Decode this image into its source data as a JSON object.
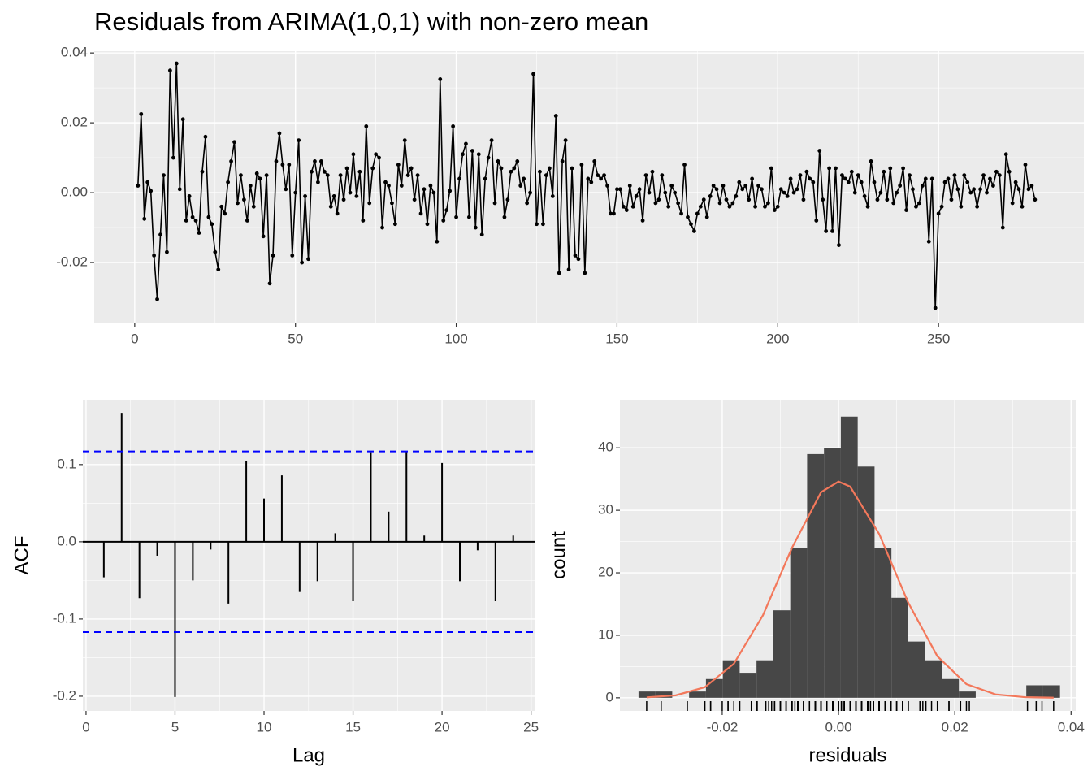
{
  "chart_data": [
    {
      "type": "line",
      "title": "Residuals from ARIMA(1,0,1) with non-zero mean",
      "color": "#000000",
      "grid": true,
      "x": [
        1,
        2,
        3,
        4,
        5,
        6,
        7,
        8,
        9,
        10,
        11,
        12,
        13,
        14,
        15,
        16,
        17,
        18,
        19,
        20,
        21,
        22,
        23,
        24,
        25,
        26,
        27,
        28,
        29,
        30,
        31,
        32,
        33,
        34,
        35,
        36,
        37,
        38,
        39,
        40,
        41,
        42,
        43,
        44,
        45,
        46,
        47,
        48,
        49,
        50,
        51,
        52,
        53,
        54,
        55,
        56,
        57,
        58,
        59,
        60,
        61,
        62,
        63,
        64,
        65,
        66,
        67,
        68,
        69,
        70,
        71,
        72,
        73,
        74,
        75,
        76,
        77,
        78,
        79,
        80,
        81,
        82,
        83,
        84,
        85,
        86,
        87,
        88,
        89,
        90,
        91,
        92,
        93,
        94,
        95,
        96,
        97,
        98,
        99,
        100,
        101,
        102,
        103,
        104,
        105,
        106,
        107,
        108,
        109,
        110,
        111,
        112,
        113,
        114,
        115,
        116,
        117,
        118,
        119,
        120,
        121,
        122,
        123,
        124,
        125,
        126,
        127,
        128,
        129,
        130,
        131,
        132,
        133,
        134,
        135,
        136,
        137,
        138,
        139,
        140,
        141,
        142,
        143,
        144,
        145,
        146,
        147,
        148,
        149,
        150,
        151,
        152,
        153,
        154,
        155,
        156,
        157,
        158,
        159,
        160,
        161,
        162,
        163,
        164,
        165,
        166,
        167,
        168,
        169,
        170,
        171,
        172,
        173,
        174,
        175,
        176,
        177,
        178,
        179,
        180,
        181,
        182,
        183,
        184,
        185,
        186,
        187,
        188,
        189,
        190,
        191,
        192,
        193,
        194,
        195,
        196,
        197,
        198,
        199,
        200,
        201,
        202,
        203,
        204,
        205,
        206,
        207,
        208,
        209,
        210,
        211,
        212,
        213,
        214,
        215,
        216,
        217,
        218,
        219,
        220,
        221,
        222,
        223,
        224,
        225,
        226,
        227,
        228,
        229,
        230,
        231,
        232,
        233,
        234,
        235,
        236,
        237,
        238,
        239,
        240,
        241,
        242,
        243,
        244,
        245,
        246,
        247,
        248,
        249,
        250,
        251,
        252,
        253,
        254,
        255,
        256,
        257,
        258,
        259,
        260,
        261,
        262,
        263,
        264,
        265,
        266,
        267,
        268,
        269,
        270,
        271,
        272,
        273,
        274,
        275,
        276,
        277,
        278,
        279,
        280
      ],
      "values": [
        0.002,
        0.0225,
        -0.0075,
        0.003,
        0.0005,
        -0.018,
        -0.0305,
        -0.012,
        0.005,
        -0.017,
        0.035,
        0.01,
        0.037,
        0.001,
        0.021,
        -0.008,
        -0.001,
        -0.007,
        -0.008,
        -0.0115,
        0.006,
        0.016,
        -0.007,
        -0.009,
        -0.017,
        -0.022,
        -0.004,
        -0.006,
        0.003,
        0.009,
        0.0145,
        -0.003,
        0.005,
        -0.002,
        -0.008,
        0.002,
        -0.004,
        0.0055,
        0.004,
        -0.0125,
        0.005,
        -0.026,
        -0.018,
        0.009,
        0.017,
        0.008,
        0.001,
        0.008,
        -0.018,
        0,
        0.015,
        -0.02,
        -0.001,
        -0.019,
        0.006,
        0.009,
        0.003,
        0.009,
        0.006,
        0.005,
        -0.004,
        -0.001,
        -0.006,
        0.005,
        -0.002,
        0.007,
        0,
        0.011,
        -0.001,
        0.006,
        -0.008,
        0.019,
        -0.003,
        0.007,
        0.011,
        0.01,
        -0.01,
        0.003,
        0.002,
        -0.003,
        -0.009,
        0.008,
        0.002,
        0.015,
        0.005,
        0.007,
        -0.002,
        0.005,
        -0.006,
        0.001,
        -0.009,
        0.002,
        0,
        -0.014,
        0.0325,
        -0.008,
        -0.005,
        0.0005,
        0.019,
        -0.007,
        0.004,
        0.011,
        0.014,
        -0.007,
        0.012,
        -0.01,
        0.011,
        -0.012,
        0.004,
        0.01,
        0.015,
        -0.003,
        0.009,
        0.007,
        -0.007,
        -0.002,
        0.006,
        0.007,
        0.009,
        0.002,
        0.004,
        -0.003,
        0,
        0.034,
        -0.009,
        0.006,
        -0.009,
        0.005,
        0.007,
        -0.001,
        0.022,
        -0.023,
        0.009,
        0.015,
        -0.022,
        0.007,
        -0.018,
        -0.019,
        0.008,
        -0.023,
        0.004,
        0.003,
        0.009,
        0.005,
        0.004,
        0.005,
        0.002,
        -0.006,
        -0.006,
        0.001,
        0.001,
        -0.004,
        -0.005,
        0.002,
        -0.004,
        -0.001,
        0.001,
        -0.008,
        0.005,
        0,
        0.006,
        -0.003,
        -0.002,
        0.005,
        0,
        -0.004,
        0.002,
        0,
        -0.003,
        -0.006,
        0.008,
        -0.007,
        -0.009,
        -0.011,
        -0.006,
        -0.004,
        -0.002,
        -0.007,
        -0.001,
        0.002,
        0.001,
        -0.003,
        0.002,
        -0.002,
        -0.004,
        -0.003,
        -0.001,
        0.003,
        0.001,
        0.002,
        -0.002,
        0.004,
        -0.004,
        0.002,
        0.001,
        -0.004,
        -0.003,
        0.007,
        -0.005,
        -0.004,
        0.001,
        0,
        -0.001,
        0.004,
        0,
        0.001,
        0.005,
        -0.002,
        0.006,
        0.004,
        0.003,
        -0.008,
        0.012,
        -0.002,
        -0.011,
        0.007,
        -0.011,
        0.007,
        -0.015,
        0.005,
        0.004,
        0.003,
        0.006,
        0,
        0.005,
        0.003,
        -0.001,
        -0.004,
        0.009,
        0.003,
        -0.002,
        0,
        0.006,
        -0.002,
        0.007,
        -0.003,
        0,
        0.002,
        0.007,
        -0.005,
        0.005,
        0.001,
        -0.004,
        -0.003,
        0.002,
        0.004,
        -0.014,
        0.004,
        -0.033,
        -0.006,
        -0.004,
        0.003,
        0.004,
        -0.002,
        0.005,
        0.001,
        -0.004,
        0.005,
        0.003,
        0,
        0.001,
        -0.004,
        0.001,
        0.005,
        0,
        0.004,
        0.002,
        0.006,
        0.005,
        -0.01,
        0.011,
        0.006,
        -0.003,
        0.003,
        0.001,
        -0.004,
        0.008,
        0.001,
        0.002,
        -0.002
      ],
      "xlim": [
        -12.6,
        295.2
      ],
      "ylim": [
        -0.0372,
        0.0405
      ],
      "xticks": [
        0,
        50,
        100,
        150,
        200,
        250
      ],
      "yticks": [
        -0.02,
        {
          "value": 0,
          "label": "0.00"
        },
        0.02,
        0.04
      ]
    },
    {
      "type": "acf",
      "xlabel": "Lag",
      "ylabel": "ACF",
      "color": "#000000",
      "grid": true,
      "x": [
        1,
        2,
        3,
        4,
        5,
        6,
        7,
        8,
        9,
        10,
        11,
        12,
        13,
        14,
        15,
        16,
        17,
        18,
        19,
        20,
        21,
        22,
        23,
        24
      ],
      "values": [
        -0.046,
        0.167,
        -0.073,
        -0.018,
        -0.201,
        -0.05,
        -0.01,
        -0.08,
        0.105,
        0.056,
        0.086,
        -0.065,
        -0.051,
        0.011,
        -0.077,
        0.116,
        0.039,
        0.117,
        0.008,
        0.102,
        -0.051,
        -0.011,
        -0.077,
        0.008
      ],
      "ci_lines": [
        0.117,
        -0.117
      ],
      "ci_color": "#0000ff",
      "xlim": [
        -0.18,
        25.2
      ],
      "ylim": [
        -0.219,
        0.184
      ],
      "xticks": [
        0,
        5,
        10,
        15,
        20,
        25
      ],
      "yticks": [
        -0.2,
        -0.1,
        {
          "value": 0,
          "label": "0.0"
        },
        0.1
      ]
    },
    {
      "type": "histogram",
      "xlabel": "residuals",
      "ylabel": "count",
      "color": "#474747",
      "grid": true,
      "bins": [
        -0.0344,
        -0.0315,
        -0.0286,
        -0.0257,
        -0.0228,
        -0.0199,
        -0.017,
        -0.0141,
        -0.0112,
        -0.0083,
        -0.0054,
        -0.0025,
        0.0004,
        0.0033,
        0.0062,
        0.0091,
        0.012,
        0.0149,
        0.0178,
        0.0207,
        0.0236,
        0.0265,
        0.0294,
        0.0323,
        0.0352,
        0.0381
      ],
      "values": [
        1,
        1,
        0,
        1,
        3,
        6,
        4,
        6,
        14,
        24,
        39,
        40,
        45,
        37,
        24,
        16,
        9,
        6,
        3,
        1,
        0,
        0,
        0,
        2,
        2
      ],
      "curve": {
        "color": "#f3785b",
        "x": [
          -0.033,
          -0.028,
          -0.023,
          -0.018,
          -0.013,
          -0.008,
          -0.003,
          0,
          0.002,
          0.007,
          0.012,
          0.017,
          0.022,
          0.027,
          0.032,
          0.037
        ],
        "values": [
          0.07,
          0.39,
          1.69,
          5.45,
          13.2,
          24,
          32.9,
          34.6,
          33.8,
          26.2,
          15.2,
          6.65,
          2.19,
          0.54,
          0.1,
          0.01
        ]
      },
      "rug_color": "#000000",
      "xlim": [
        -0.0376,
        0.0408
      ],
      "ylim": [
        -2.1,
        47.7
      ],
      "xticks": [
        -0.02,
        {
          "value": 0,
          "label": "0.00"
        },
        0.02,
        0.04
      ],
      "yticks": [
        0,
        10,
        20,
        30,
        40
      ]
    }
  ]
}
